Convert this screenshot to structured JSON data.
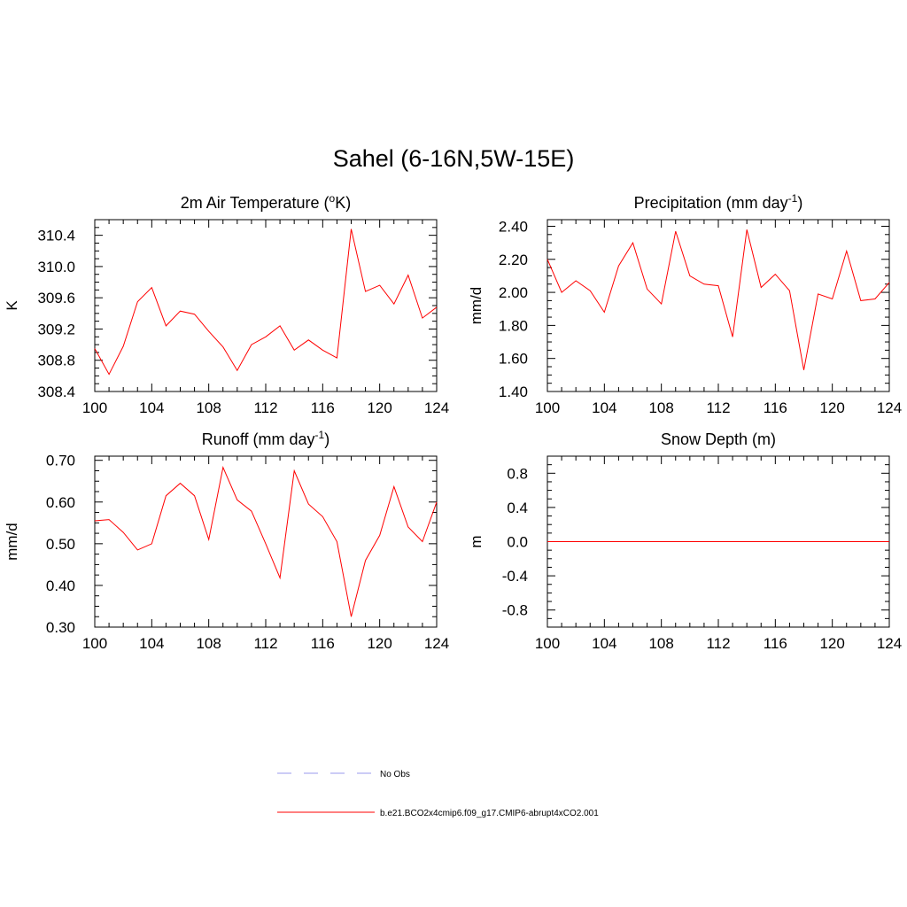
{
  "figure": {
    "title": "Sahel (6-16N,5W-15E)"
  },
  "colors": {
    "model_line": "#ff0000",
    "obs_line": "#9999ee",
    "axis": "#000000"
  },
  "legend": {
    "entries": [
      {
        "label": "No Obs",
        "style": "dashed",
        "color": "#9999ee"
      },
      {
        "label": "b.e21.BCO2x4cmip6.f09_g17.CMIP6-abrupt4xCO2.001",
        "style": "solid",
        "color": "#ff0000"
      }
    ]
  },
  "chart_data": [
    {
      "type": "line",
      "title": "2m Air Temperature (",
      "title_sup": "o",
      "title_after": "K)",
      "ylabel": "K",
      "xlim": [
        100,
        124
      ],
      "ylim": [
        308.4,
        310.6
      ],
      "xticks": [
        "100",
        "104",
        "108",
        "112",
        "116",
        "120",
        "124"
      ],
      "yticks": [
        "308.4",
        "308.8",
        "309.2",
        "309.6",
        "310.0",
        "310.4"
      ],
      "ytick_values": [
        308.4,
        308.8,
        309.2,
        309.6,
        310.0,
        310.4
      ],
      "x": [
        100,
        101,
        102,
        103,
        104,
        105,
        106,
        107,
        108,
        109,
        110,
        111,
        112,
        113,
        114,
        115,
        116,
        117,
        118,
        119,
        120,
        121,
        122,
        123,
        124
      ],
      "series": [
        {
          "values": [
            308.95,
            308.62,
            308.98,
            309.55,
            309.73,
            309.24,
            309.43,
            309.39,
            309.17,
            308.97,
            308.67,
            309.0,
            309.1,
            309.24,
            308.93,
            309.06,
            308.93,
            308.83,
            310.48,
            309.68,
            309.76,
            309.52,
            309.89,
            309.34,
            309.48
          ]
        }
      ]
    },
    {
      "type": "line",
      "title": "Precipitation (mm day",
      "title_sup": "-1",
      "title_after": ")",
      "ylabel": "mm/d",
      "xlim": [
        100,
        124
      ],
      "ylim": [
        1.4,
        2.44
      ],
      "xticks": [
        "100",
        "104",
        "108",
        "112",
        "116",
        "120",
        "124"
      ],
      "yticks": [
        "1.40",
        "1.60",
        "1.80",
        "2.00",
        "2.20",
        "2.40"
      ],
      "ytick_values": [
        1.4,
        1.6,
        1.8,
        2.0,
        2.2,
        2.4
      ],
      "x": [
        100,
        101,
        102,
        103,
        104,
        105,
        106,
        107,
        108,
        109,
        110,
        111,
        112,
        113,
        114,
        115,
        116,
        117,
        118,
        119,
        120,
        121,
        122,
        123,
        124
      ],
      "series": [
        {
          "values": [
            2.2,
            2.0,
            2.07,
            2.01,
            1.88,
            2.16,
            2.3,
            2.02,
            1.93,
            2.37,
            2.1,
            2.05,
            2.04,
            1.73,
            2.38,
            2.03,
            2.11,
            2.01,
            1.53,
            1.99,
            1.96,
            2.25,
            1.95,
            1.96,
            2.06
          ]
        }
      ]
    },
    {
      "type": "line",
      "title": "Runoff (mm day",
      "title_sup": "-1",
      "title_after": ")",
      "ylabel": "mm/d",
      "xlim": [
        100,
        124
      ],
      "ylim": [
        0.3,
        0.71
      ],
      "xticks": [
        "100",
        "104",
        "108",
        "112",
        "116",
        "120",
        "124"
      ],
      "yticks": [
        "0.30",
        "0.40",
        "0.50",
        "0.60",
        "0.70"
      ],
      "ytick_values": [
        0.3,
        0.4,
        0.5,
        0.6,
        0.7
      ],
      "x": [
        100,
        101,
        102,
        103,
        104,
        105,
        106,
        107,
        108,
        109,
        110,
        111,
        112,
        113,
        114,
        115,
        116,
        117,
        118,
        119,
        120,
        121,
        122,
        123,
        124
      ],
      "series": [
        {
          "values": [
            0.555,
            0.558,
            0.527,
            0.485,
            0.5,
            0.615,
            0.645,
            0.615,
            0.51,
            0.683,
            0.605,
            0.578,
            0.5,
            0.418,
            0.675,
            0.595,
            0.565,
            0.505,
            0.325,
            0.46,
            0.52,
            0.637,
            0.54,
            0.505,
            0.6
          ]
        }
      ]
    },
    {
      "type": "line",
      "title": "Snow Depth (m)",
      "title_sup": "",
      "title_after": "",
      "ylabel": "m",
      "xlim": [
        100,
        124
      ],
      "ylim": [
        -1.0,
        1.0
      ],
      "xticks": [
        "100",
        "104",
        "108",
        "112",
        "116",
        "120",
        "124"
      ],
      "yticks": [
        "-0.8",
        "-0.4",
        "0.0",
        "0.4",
        "0.8"
      ],
      "ytick_values": [
        -0.8,
        -0.4,
        0.0,
        0.4,
        0.8
      ],
      "x": [
        100,
        101,
        102,
        103,
        104,
        105,
        106,
        107,
        108,
        109,
        110,
        111,
        112,
        113,
        114,
        115,
        116,
        117,
        118,
        119,
        120,
        121,
        122,
        123,
        124
      ],
      "series": [
        {
          "values": [
            0,
            0,
            0,
            0,
            0,
            0,
            0,
            0,
            0,
            0,
            0,
            0,
            0,
            0,
            0,
            0,
            0,
            0,
            0,
            0,
            0,
            0,
            0,
            0,
            0
          ]
        }
      ]
    }
  ]
}
